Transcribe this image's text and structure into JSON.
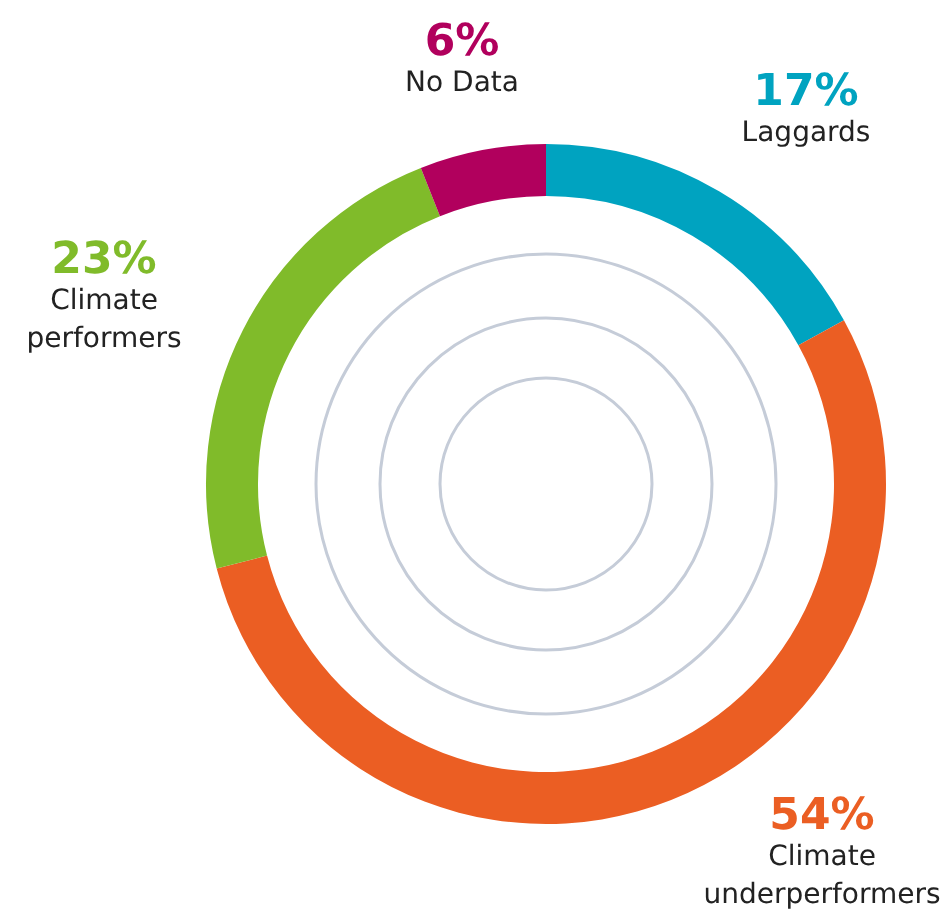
{
  "chart_data": {
    "type": "donut",
    "categories": [
      "Laggards",
      "Climate underperformers",
      "Climate performers",
      "No Data"
    ],
    "values": [
      17,
      54,
      23,
      6
    ],
    "value_labels": [
      "17%",
      "54%",
      "23%",
      "6%"
    ],
    "colors": [
      "#00a3c0",
      "#eb5e23",
      "#80bb2a",
      "#b1005d"
    ],
    "legend": false
  }
}
